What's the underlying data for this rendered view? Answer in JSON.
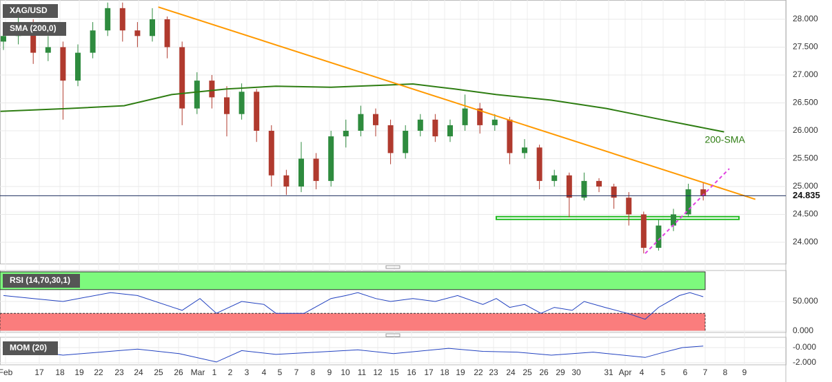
{
  "chart_data": {
    "type": "candlestick",
    "title": "XAG/USD",
    "up_color": "#2e8b3e",
    "down_color": "#b03a2e",
    "ylim": [
      23.617,
      28.346
    ],
    "yticks": [
      {
        "value": 28,
        "label": "28.000"
      },
      {
        "value": 27.5,
        "label": "27.500"
      },
      {
        "value": 27,
        "label": "27.000"
      },
      {
        "value": 26.5,
        "label": "26.500"
      },
      {
        "value": 26,
        "label": "26.000"
      },
      {
        "value": 25.5,
        "label": "25.500"
      },
      {
        "value": 25,
        "label": "25.000"
      },
      {
        "value": 24.5,
        "label": "24.500"
      },
      {
        "value": 24,
        "label": "24.000"
      }
    ],
    "x_labels": [
      "Feb",
      "17",
      "18",
      "19",
      "22",
      "23",
      "24",
      "25",
      "26",
      "Mar",
      "1",
      "2",
      "3",
      "4",
      "5",
      "7",
      "8",
      "9",
      "10",
      "11",
      "12",
      "15",
      "16",
      "17",
      "18",
      "19",
      "22",
      "23",
      "24",
      "25",
      "26",
      "29",
      "30",
      "31",
      "Apr",
      "4",
      "5",
      "6",
      "7",
      "8",
      "9"
    ],
    "open": [
      27.6,
      27.7,
      27.9,
      27.4,
      27.5,
      26.9,
      27.4,
      27.8,
      28.2,
      27.8,
      27.7,
      28.0,
      27.5,
      26.4,
      26.9,
      26.6,
      26.3,
      26.7,
      26.0,
      25.2,
      25.0,
      25.5,
      25.1,
      25.9,
      26.0,
      26.3,
      26.1,
      25.6,
      26.0,
      26.2,
      25.9,
      26.1,
      26.4,
      26.1,
      26.2,
      25.6,
      25.7,
      25.1,
      25.2,
      24.8,
      25.1,
      25.0,
      24.8,
      24.5,
      23.9,
      24.3,
      24.5,
      24.95
    ],
    "high": [
      27.85,
      28.05,
      28.0,
      27.7,
      27.6,
      27.55,
      27.95,
      28.3,
      28.3,
      27.95,
      28.2,
      28.05,
      27.6,
      27.05,
      27.0,
      26.8,
      26.85,
      26.75,
      26.1,
      25.3,
      25.8,
      25.6,
      26.0,
      26.2,
      26.45,
      26.4,
      26.2,
      26.1,
      26.3,
      26.3,
      26.2,
      26.65,
      26.5,
      26.3,
      26.25,
      25.85,
      25.75,
      25.3,
      25.25,
      25.25,
      25.15,
      25.05,
      24.9,
      24.55,
      24.4,
      24.6,
      25.05,
      25.08
    ],
    "low": [
      27.45,
      27.55,
      27.2,
      27.25,
      26.2,
      26.8,
      27.3,
      27.7,
      27.6,
      27.5,
      27.6,
      27.3,
      26.1,
      26.3,
      26.4,
      25.9,
      26.2,
      25.8,
      25.0,
      24.85,
      24.9,
      24.95,
      25.0,
      25.7,
      25.9,
      25.9,
      25.4,
      25.5,
      25.9,
      25.8,
      25.8,
      26.0,
      25.95,
      26.0,
      25.4,
      25.5,
      24.95,
      25.0,
      24.45,
      24.75,
      24.9,
      24.6,
      24.3,
      23.8,
      23.85,
      24.2,
      24.45,
      24.75
    ],
    "close": [
      27.7,
      27.9,
      27.4,
      27.5,
      26.9,
      27.4,
      27.8,
      28.2,
      27.8,
      27.7,
      28.0,
      27.5,
      26.4,
      26.9,
      26.6,
      26.3,
      26.7,
      26.0,
      25.2,
      25.0,
      25.5,
      25.1,
      25.9,
      26.0,
      26.3,
      26.1,
      25.6,
      26.0,
      26.2,
      25.9,
      26.1,
      26.4,
      26.1,
      26.2,
      25.6,
      25.7,
      25.1,
      25.2,
      24.8,
      25.1,
      25.0,
      24.8,
      24.5,
      23.9,
      24.3,
      24.5,
      24.95,
      24.84
    ],
    "sma": {
      "name": "SMA (200,0)",
      "annotation": "200-SMA",
      "color": "#2e7d12",
      "x": [
        -0.2,
        4.4,
        8.1,
        11.3,
        15,
        18.3,
        22,
        25.7,
        27.5,
        30.3,
        33.1,
        36.8,
        40.5,
        44.2,
        48.4
      ],
      "values": [
        26.35,
        26.4,
        26.45,
        26.65,
        26.75,
        26.8,
        26.78,
        26.82,
        26.84,
        26.75,
        26.65,
        26.55,
        26.4,
        26.2,
        25.98
      ]
    },
    "trendline": {
      "color": "#ff9900",
      "x": [
        10.4,
        50.5
      ],
      "values": [
        28.22,
        24.77
      ]
    },
    "support_line": {
      "color": "#e040e0",
      "x": [
        43.1,
        48.75
      ],
      "values": [
        23.8,
        25.32
      ]
    },
    "support_zone": {
      "color": "#22bb22",
      "x": [
        33.1,
        49.4
      ],
      "values": [
        24.41,
        24.46
      ]
    },
    "last_price": {
      "value": 24.835,
      "label": "24.835"
    },
    "rsi": {
      "name": "RSI (14,70,30,1)",
      "color": "#2040c0",
      "ylim": [
        -2.3,
        102.3
      ],
      "overbought": 70,
      "oversold": 30,
      "top": 100,
      "bottom": 0,
      "yticks": [
        {
          "value": 50,
          "label": "50.000"
        },
        {
          "value": 0,
          "label": "0.000"
        }
      ],
      "x": [
        0,
        2,
        4,
        7.2,
        9,
        12,
        13.2,
        14.3,
        16,
        17.5,
        18.3,
        20.2,
        22,
        23,
        23.8,
        25,
        26,
        27.5,
        29,
        30.5,
        32.2,
        33.1,
        34,
        35,
        36.1,
        37,
        38.2,
        39,
        40.4,
        41.9,
        43.1,
        44,
        45.4,
        46.1,
        47
      ],
      "values": [
        60,
        55,
        50,
        65,
        60,
        35,
        55,
        30,
        50,
        45,
        30,
        30,
        55,
        60,
        65,
        55,
        50,
        55,
        50,
        60,
        45,
        55,
        40,
        45,
        30,
        40,
        35,
        50,
        40,
        30,
        20,
        40,
        60,
        65,
        58
      ]
    },
    "mom": {
      "name": "MOM (20)",
      "color": "#2040c0",
      "ylim": [
        -2.27,
        1.36
      ],
      "yticks": [
        {
          "value": 0,
          "label": "-0.000"
        },
        {
          "value": -2,
          "label": "-2.000"
        }
      ],
      "x": [
        0,
        2,
        4,
        9,
        11.8,
        14.3,
        16,
        18.3,
        23.8,
        26.2,
        29.9,
        32.2,
        34.5,
        36.8,
        39.6,
        43.1,
        44.2,
        45.6,
        47
      ],
      "values": [
        -0.2,
        -0.5,
        -1.0,
        -0.2,
        -0.8,
        -1.9,
        -0.4,
        -0.9,
        -0.3,
        -0.8,
        -0.1,
        -0.5,
        -0.6,
        -1.0,
        -0.6,
        -1.3,
        -0.7,
        0,
        0.2
      ]
    }
  }
}
